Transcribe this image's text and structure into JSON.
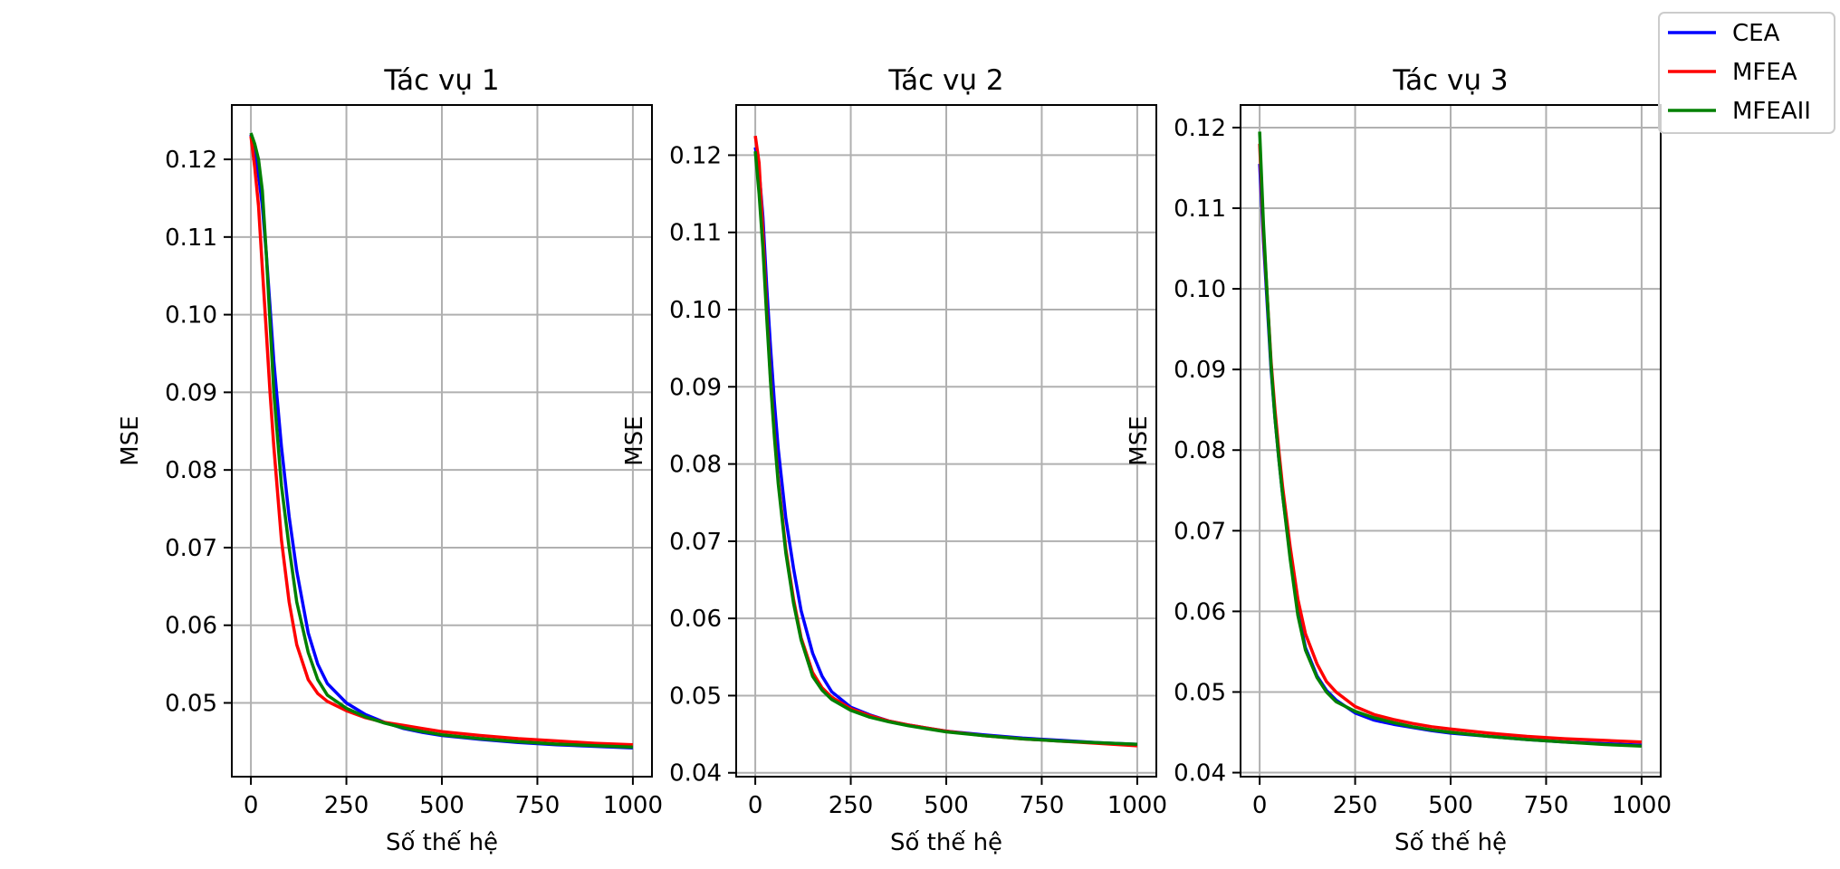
{
  "colors": {
    "CEA": "#0000ff",
    "MFEA": "#ff0000",
    "MFEAII": "#008000",
    "grid": "#b0b0b0",
    "axes": "#000000"
  },
  "legend": {
    "placement": "top-right",
    "entries": [
      "CEA",
      "MFEA",
      "MFEAII"
    ]
  },
  "chart_data": [
    {
      "type": "line",
      "title": "Tác vụ 1",
      "xlabel": "Số thế hệ",
      "ylabel": "MSE",
      "xlim": [
        -50,
        1050
      ],
      "ylim": [
        0.0405,
        0.127
      ],
      "xticks": [
        0,
        250,
        500,
        750,
        1000
      ],
      "yticks": [
        0.05,
        0.06,
        0.07,
        0.08,
        0.09,
        0.1,
        0.11,
        0.12
      ],
      "ytick_labels": [
        "0.05",
        "0.06",
        "0.07",
        "0.08",
        "0.09",
        "0.10",
        "0.11",
        "0.12"
      ],
      "grid": true,
      "series": [
        {
          "name": "CEA",
          "x": [
            0,
            10,
            20,
            30,
            40,
            50,
            60,
            80,
            100,
            120,
            150,
            175,
            200,
            250,
            300,
            350,
            400,
            450,
            500,
            600,
            700,
            800,
            900,
            1000
          ],
          "y": [
            0.1232,
            0.121,
            0.118,
            0.114,
            0.108,
            0.101,
            0.094,
            0.083,
            0.074,
            0.067,
            0.059,
            0.055,
            0.0525,
            0.05,
            0.0485,
            0.0475,
            0.0467,
            0.0462,
            0.0458,
            0.0453,
            0.0449,
            0.0446,
            0.0444,
            0.0442
          ]
        },
        {
          "name": "MFEA",
          "x": [
            0,
            10,
            20,
            30,
            40,
            50,
            60,
            80,
            100,
            120,
            150,
            175,
            200,
            250,
            300,
            350,
            400,
            450,
            500,
            600,
            700,
            800,
            900,
            1000
          ],
          "y": [
            0.123,
            0.119,
            0.114,
            0.106,
            0.098,
            0.09,
            0.083,
            0.071,
            0.063,
            0.0575,
            0.053,
            0.0512,
            0.0502,
            0.049,
            0.0481,
            0.0475,
            0.0471,
            0.0467,
            0.0463,
            0.0458,
            0.0454,
            0.0451,
            0.0448,
            0.0446
          ]
        },
        {
          "name": "MFEAII",
          "x": [
            0,
            10,
            20,
            30,
            40,
            50,
            60,
            80,
            100,
            120,
            150,
            175,
            200,
            250,
            300,
            350,
            400,
            450,
            500,
            600,
            700,
            800,
            900,
            1000
          ],
          "y": [
            0.1234,
            0.122,
            0.12,
            0.116,
            0.108,
            0.099,
            0.09,
            0.078,
            0.07,
            0.063,
            0.0565,
            0.053,
            0.051,
            0.0493,
            0.0482,
            0.0474,
            0.0468,
            0.0463,
            0.0459,
            0.0454,
            0.045,
            0.0447,
            0.0445,
            0.0443
          ]
        }
      ]
    },
    {
      "type": "line",
      "title": "Tác vụ 2",
      "xlabel": "Số thế hệ",
      "ylabel": "MSE",
      "xlim": [
        -50,
        1050
      ],
      "ylim": [
        0.0395,
        0.1265
      ],
      "xticks": [
        0,
        250,
        500,
        750,
        1000
      ],
      "yticks": [
        0.04,
        0.05,
        0.06,
        0.07,
        0.08,
        0.09,
        0.1,
        0.11,
        0.12
      ],
      "ytick_labels": [
        "0.04",
        "0.05",
        "0.06",
        "0.07",
        "0.08",
        "0.09",
        "0.10",
        "0.11",
        "0.12"
      ],
      "grid": true,
      "series": [
        {
          "name": "CEA",
          "x": [
            0,
            10,
            20,
            30,
            40,
            50,
            60,
            80,
            100,
            120,
            150,
            175,
            200,
            250,
            300,
            350,
            400,
            450,
            500,
            600,
            700,
            800,
            900,
            1000
          ],
          "y": [
            0.121,
            0.118,
            0.112,
            0.103,
            0.095,
            0.088,
            0.082,
            0.073,
            0.0665,
            0.061,
            0.0555,
            0.0525,
            0.0505,
            0.0485,
            0.0475,
            0.0467,
            0.0462,
            0.0458,
            0.0454,
            0.0449,
            0.0445,
            0.0442,
            0.0439,
            0.0437
          ]
        },
        {
          "name": "MFEA",
          "x": [
            0,
            10,
            20,
            30,
            40,
            50,
            60,
            80,
            100,
            120,
            150,
            175,
            200,
            250,
            300,
            350,
            400,
            450,
            500,
            600,
            700,
            800,
            900,
            1000
          ],
          "y": [
            0.1225,
            0.119,
            0.11,
            0.1,
            0.091,
            0.084,
            0.078,
            0.069,
            0.0625,
            0.0575,
            0.053,
            0.051,
            0.0498,
            0.0483,
            0.0474,
            0.0467,
            0.0462,
            0.0458,
            0.0454,
            0.0448,
            0.0444,
            0.0441,
            0.0438,
            0.0435
          ]
        },
        {
          "name": "MFEAII",
          "x": [
            0,
            10,
            20,
            30,
            40,
            50,
            60,
            80,
            100,
            120,
            150,
            175,
            200,
            250,
            300,
            350,
            400,
            450,
            500,
            600,
            700,
            800,
            900,
            1000
          ],
          "y": [
            0.1205,
            0.115,
            0.108,
            0.099,
            0.0905,
            0.0835,
            0.0775,
            0.0685,
            0.062,
            0.0572,
            0.0525,
            0.0507,
            0.0495,
            0.0481,
            0.0472,
            0.0466,
            0.0461,
            0.0457,
            0.0453,
            0.0448,
            0.0444,
            0.0441,
            0.0439,
            0.0437
          ]
        }
      ]
    },
    {
      "type": "line",
      "title": "Tác vụ 3",
      "xlabel": "Số thế hệ",
      "ylabel": "MSE",
      "xlim": [
        -50,
        1050
      ],
      "ylim": [
        0.0395,
        0.1228
      ],
      "xticks": [
        0,
        250,
        500,
        750,
        1000
      ],
      "yticks": [
        0.04,
        0.05,
        0.06,
        0.07,
        0.08,
        0.09,
        0.1,
        0.11,
        0.12
      ],
      "ytick_labels": [
        "0.04",
        "0.05",
        "0.06",
        "0.07",
        "0.08",
        "0.09",
        "0.10",
        "0.11",
        "0.12"
      ],
      "grid": true,
      "series": [
        {
          "name": "CEA",
          "x": [
            0,
            10,
            20,
            30,
            40,
            50,
            60,
            80,
            100,
            120,
            150,
            175,
            200,
            250,
            300,
            350,
            400,
            450,
            500,
            600,
            700,
            800,
            900,
            1000
          ],
          "y": [
            0.1155,
            0.106,
            0.098,
            0.09,
            0.084,
            0.079,
            0.0745,
            0.067,
            0.06,
            0.0555,
            0.052,
            0.0502,
            0.049,
            0.0474,
            0.0465,
            0.046,
            0.0456,
            0.0452,
            0.0449,
            0.0445,
            0.0441,
            0.0438,
            0.0436,
            0.0434
          ]
        },
        {
          "name": "MFEA",
          "x": [
            0,
            10,
            20,
            30,
            40,
            50,
            60,
            80,
            100,
            120,
            150,
            175,
            200,
            250,
            300,
            350,
            400,
            450,
            500,
            600,
            700,
            800,
            900,
            1000
          ],
          "y": [
            0.118,
            0.107,
            0.099,
            0.091,
            0.085,
            0.08,
            0.0755,
            0.068,
            0.0615,
            0.0572,
            0.0535,
            0.0513,
            0.05,
            0.0482,
            0.0472,
            0.0466,
            0.0461,
            0.0457,
            0.0454,
            0.0449,
            0.0445,
            0.0442,
            0.044,
            0.0438
          ]
        },
        {
          "name": "MFEAII",
          "x": [
            0,
            10,
            20,
            30,
            40,
            50,
            60,
            80,
            100,
            120,
            150,
            175,
            200,
            250,
            300,
            350,
            400,
            450,
            500,
            600,
            700,
            800,
            900,
            1000
          ],
          "y": [
            0.1195,
            0.108,
            0.099,
            0.0905,
            0.084,
            0.079,
            0.0745,
            0.0665,
            0.0595,
            0.0552,
            0.0518,
            0.05,
            0.0488,
            0.0476,
            0.0468,
            0.0462,
            0.0457,
            0.0453,
            0.045,
            0.0445,
            0.0441,
            0.0438,
            0.0435,
            0.0433
          ]
        }
      ]
    }
  ]
}
